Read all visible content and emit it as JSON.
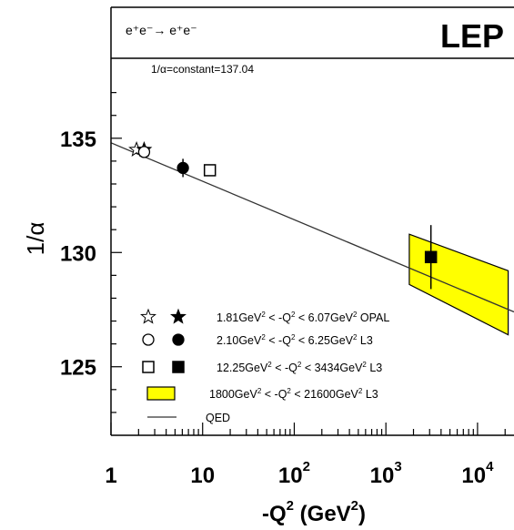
{
  "chart_data": {
    "type": "scatter",
    "title": "",
    "header": {
      "process": "e⁺e⁻→ e⁺e⁻",
      "experiment": "LEP",
      "note": "1/α=constant=137.04"
    },
    "xlabel": {
      "base": "-Q",
      "sup": "2",
      "unit_open": " (GeV",
      "unit_sup": "2",
      "unit_close": ")"
    },
    "ylabel": "1/α",
    "x_scale": "log",
    "xlim": [
      1,
      25000
    ],
    "ylim": [
      122,
      138.5
    ],
    "x_ticks": [
      {
        "value": 1,
        "label": "1"
      },
      {
        "value": 10,
        "label": "10"
      },
      {
        "value": 100,
        "base": "10",
        "exp": "2"
      },
      {
        "value": 1000,
        "base": "10",
        "exp": "3"
      },
      {
        "value": 10000,
        "base": "10",
        "exp": "4"
      }
    ],
    "y_ticks": [
      {
        "value": 125,
        "label": "125"
      },
      {
        "value": 130,
        "label": "130"
      },
      {
        "value": 135,
        "label": "135"
      }
    ],
    "series": [
      {
        "name": "OPAL low Q² (open)",
        "marker": "star-open",
        "points": [
          {
            "x": 1.9,
            "y": 134.5,
            "err": 0.15
          }
        ]
      },
      {
        "name": "OPAL low Q² (filled)",
        "marker": "star-filled",
        "points": [
          {
            "x": 2.3,
            "y": 134.5,
            "err": 0.15
          }
        ]
      },
      {
        "name": "L3 low Q² (open)",
        "marker": "circle-open",
        "points": [
          {
            "x": 2.3,
            "y": 134.4,
            "err": 0.15
          }
        ]
      },
      {
        "name": "L3 low Q² (filled)",
        "marker": "circle-filled",
        "points": [
          {
            "x": 6.1,
            "y": 133.7,
            "err": 0.4
          }
        ]
      },
      {
        "name": "L3 mid Q² (open)",
        "marker": "square-open",
        "points": [
          {
            "x": 12,
            "y": 133.6,
            "err": 0.2
          }
        ]
      },
      {
        "name": "L3 high Q² (filled)",
        "marker": "square-filled",
        "points": [
          {
            "x": 3100,
            "y": 129.8,
            "err": 1.4
          }
        ]
      }
    ],
    "band": {
      "name": "L3 1800–21600 GeV² band",
      "color": "#ffff00",
      "polygon": [
        {
          "x": 1800,
          "y": 130.8
        },
        {
          "x": 21600,
          "y": 129.2
        },
        {
          "x": 21600,
          "y": 126.4
        },
        {
          "x": 1800,
          "y": 128.6
        }
      ]
    },
    "qed_line": {
      "points": [
        {
          "x": 1,
          "y": 134.8
        },
        {
          "x": 25000,
          "y": 127.4
        }
      ]
    },
    "legend": {
      "placement": "bottom-left",
      "entries": [
        {
          "symbols": [
            "star-open",
            "star-filled"
          ],
          "parts": [
            "1.81GeV",
            "2",
            " < -Q",
            "2",
            " < 6.07GeV",
            "2",
            " OPAL"
          ]
        },
        {
          "symbols": [
            "circle-open",
            "circle-filled"
          ],
          "parts": [
            "2.10GeV",
            "2",
            " < -Q",
            "2",
            " < 6.25GeV",
            "2",
            " L3"
          ]
        },
        {
          "symbols": [
            "square-open",
            "square-filled"
          ],
          "parts": [
            "12.25GeV",
            "2",
            " < -Q",
            "2",
            " < 3434GeV",
            "2",
            " L3"
          ]
        },
        {
          "symbols": [
            "band"
          ],
          "parts": [
            "1800GeV",
            "2",
            " < -Q",
            "2",
            " < 21600GeV",
            "2",
            " L3"
          ]
        },
        {
          "symbols": [
            "line"
          ],
          "parts": [
            "QED"
          ]
        }
      ]
    },
    "colors": {
      "band": "#ffff00",
      "ink": "#000000",
      "line": "#333333"
    }
  }
}
